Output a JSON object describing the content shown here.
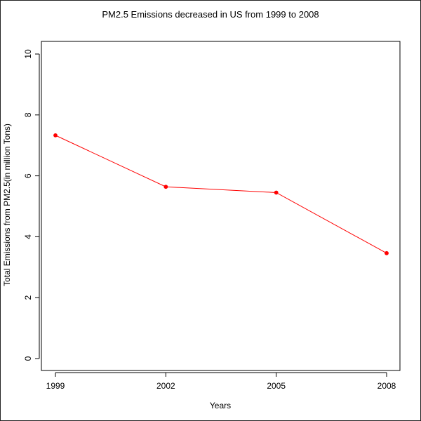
{
  "chart_data": {
    "type": "line",
    "title": "PM2.5 Emissions decreased in US from 1999 to 2008",
    "xlabel": "Years",
    "ylabel": "Total Emissions from PM2.5(in million Tons)",
    "x": [
      1999,
      2002,
      2005,
      2008
    ],
    "x_tick_labels": [
      "1999",
      "2002",
      "2005",
      "2008"
    ],
    "series": [
      {
        "values": [
          7.33,
          5.64,
          5.45,
          3.46
        ],
        "color": "#ff0000"
      }
    ],
    "ylim": [
      0,
      10
    ],
    "y_ticks": [
      0,
      2,
      4,
      6,
      8,
      10
    ],
    "grid": false,
    "legend": "none",
    "marker": "filled-circle"
  }
}
